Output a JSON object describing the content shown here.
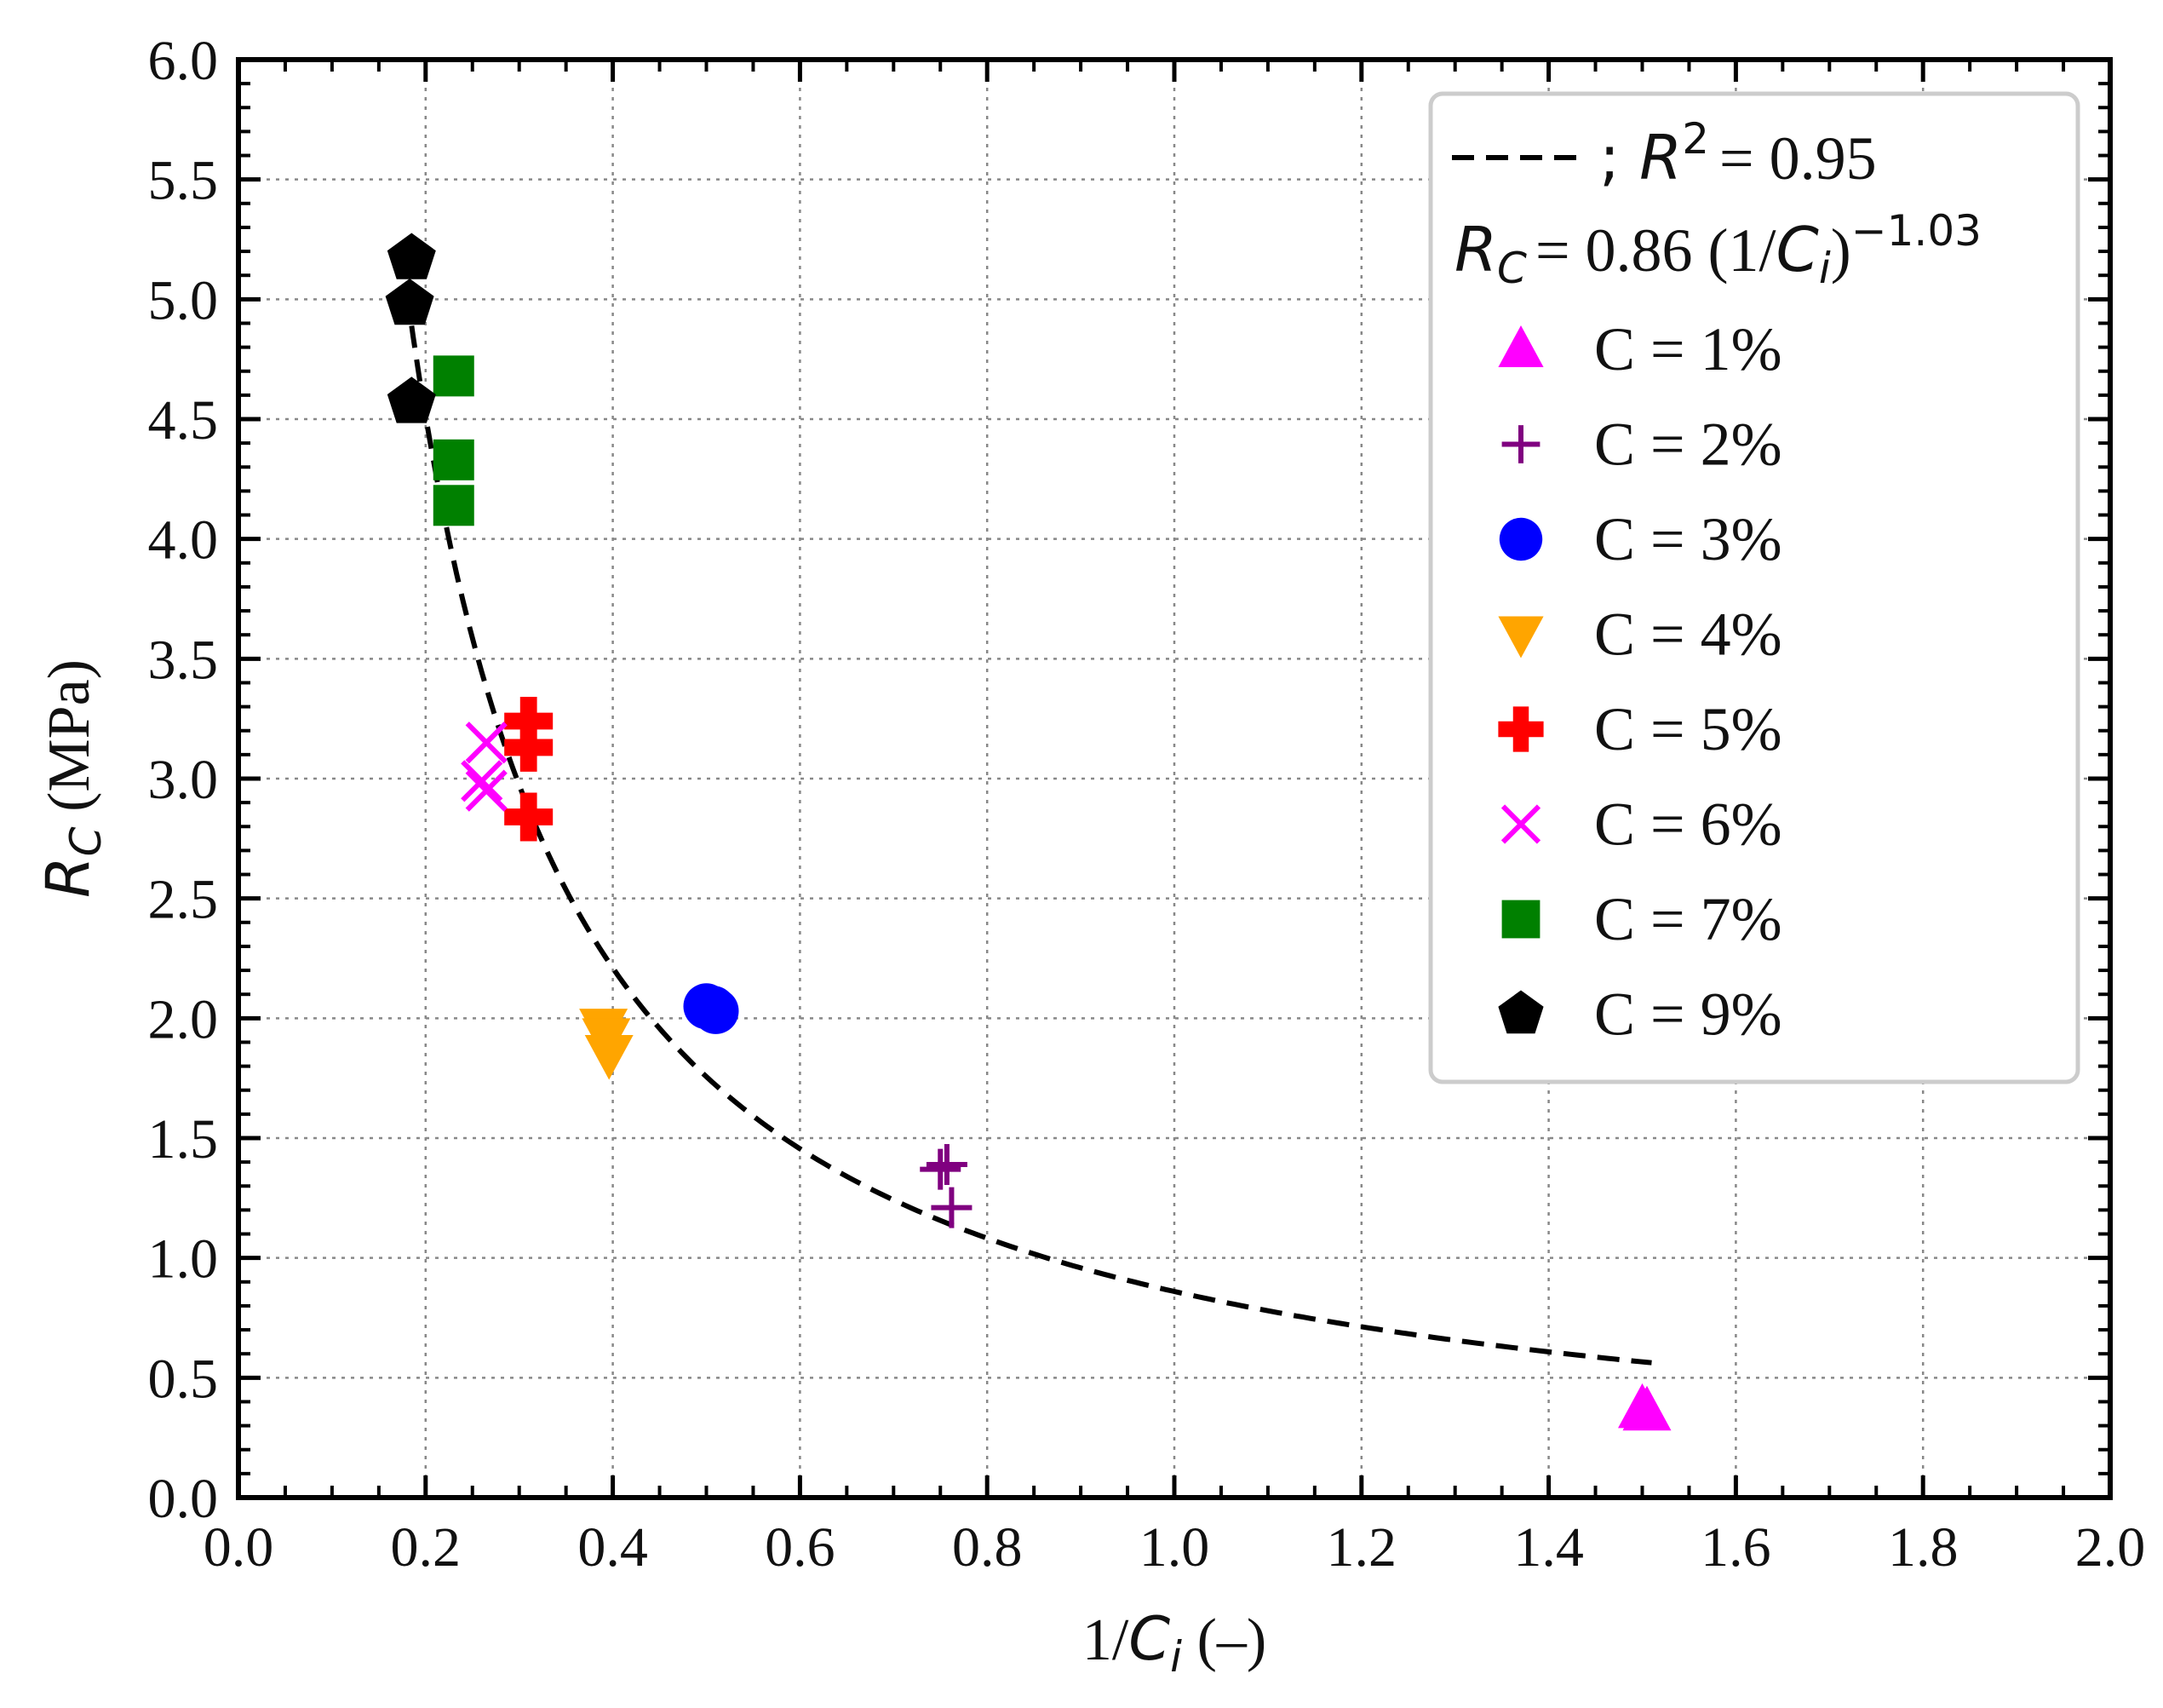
{
  "chart_data": {
    "type": "scatter",
    "xlabel": "1/C_i (–)",
    "ylabel": "R_C (MPa)",
    "xlabel_parts": {
      "prefix": "1/",
      "var": "C",
      "sub": "i",
      "suffix": " (–)"
    },
    "ylabel_parts": {
      "var": "R",
      "sub": "C",
      "suffix": " (MPa)"
    },
    "xlim": [
      0.0,
      2.0
    ],
    "ylim": [
      0.0,
      6.0
    ],
    "x_ticks": [
      "0.0",
      "0.2",
      "0.4",
      "0.6",
      "0.8",
      "1.0",
      "1.2",
      "1.4",
      "1.6",
      "1.8",
      "2.0"
    ],
    "y_ticks": [
      "0.0",
      "0.5",
      "1.0",
      "1.5",
      "2.0",
      "2.5",
      "3.0",
      "3.5",
      "4.0",
      "4.5",
      "5.0",
      "5.5",
      "6.0"
    ],
    "grid": true,
    "legend_position": "top-right",
    "fit": {
      "label_r2": "; R² = 0.95",
      "r2_text": "= 0.95",
      "equation_rhs": "= 0.86 (1/",
      "equation_exponent": "−1.03",
      "coefficient": 0.86,
      "exponent": -1.03,
      "x_range": [
        0.18,
        1.51
      ],
      "style": "dashed",
      "color": "#000000"
    },
    "series": [
      {
        "name": "C = 1%",
        "marker": "triangle-up",
        "color": "#ff00ff",
        "points": [
          [
            1.5,
            0.37
          ],
          [
            1.505,
            0.36
          ]
        ]
      },
      {
        "name": "C = 2%",
        "marker": "plus",
        "color": "#800080",
        "points": [
          [
            0.75,
            1.37
          ],
          [
            0.757,
            1.39
          ],
          [
            0.762,
            1.21
          ]
        ]
      },
      {
        "name": "C = 3%",
        "marker": "circle",
        "color": "#0000ff",
        "points": [
          [
            0.5,
            2.05
          ],
          [
            0.507,
            2.04
          ],
          [
            0.51,
            2.03
          ]
        ]
      },
      {
        "name": "C = 4%",
        "marker": "triangle-down",
        "color": "#ffa500",
        "points": [
          [
            0.39,
            1.96
          ],
          [
            0.393,
            1.92
          ],
          [
            0.396,
            1.85
          ]
        ]
      },
      {
        "name": "C = 5%",
        "marker": "plus-filled",
        "color": "#ff0000",
        "points": [
          [
            0.31,
            3.24
          ],
          [
            0.31,
            3.13
          ],
          [
            0.31,
            2.84
          ]
        ]
      },
      {
        "name": "C = 6%",
        "marker": "x",
        "color": "#ff00ff",
        "points": [
          [
            0.265,
            3.15
          ],
          [
            0.26,
            2.99
          ],
          [
            0.265,
            2.95
          ]
        ]
      },
      {
        "name": "C = 7%",
        "marker": "square",
        "color": "#008000",
        "points": [
          [
            0.23,
            4.68
          ],
          [
            0.23,
            4.33
          ],
          [
            0.23,
            4.14
          ]
        ]
      },
      {
        "name": "C = 9%",
        "marker": "pentagon",
        "color": "#000000",
        "points": [
          [
            0.185,
            5.17
          ],
          [
            0.183,
            4.98
          ],
          [
            0.185,
            4.57
          ]
        ]
      }
    ]
  }
}
